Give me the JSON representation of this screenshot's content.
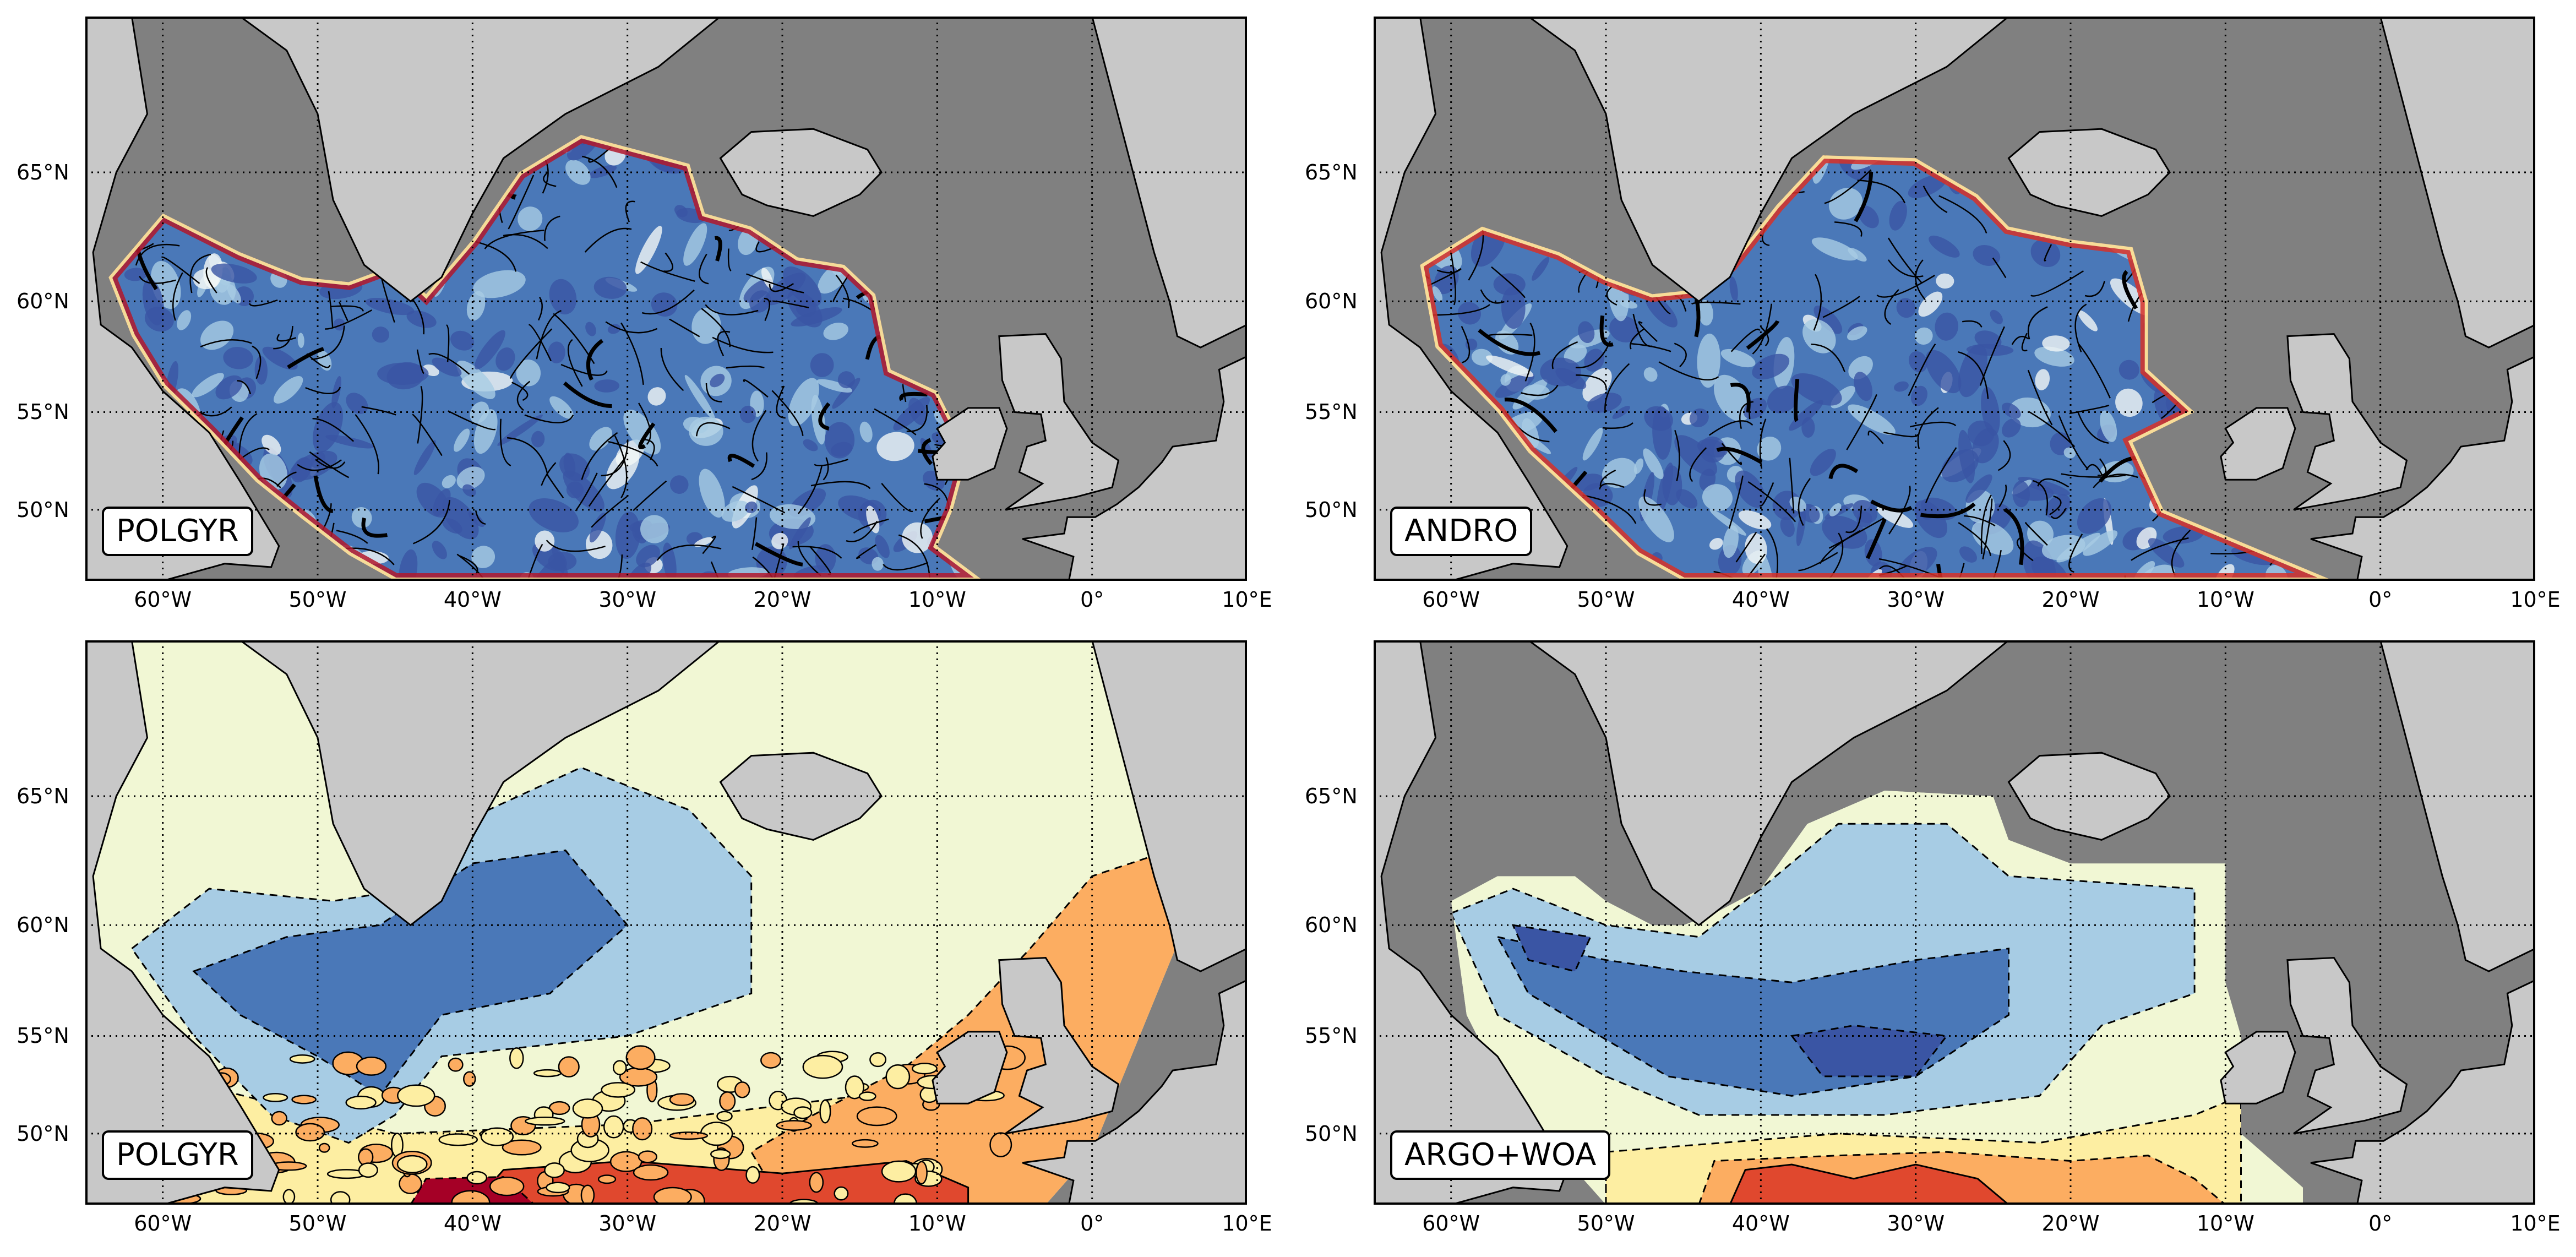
{
  "axes": {
    "lon_labels": [
      "60°W",
      "50°W",
      "40°W",
      "30°W",
      "20°W",
      "10°W",
      "0°",
      "10°E"
    ],
    "lon_values": [
      -60,
      -50,
      -40,
      -30,
      -20,
      -10,
      0,
      10
    ],
    "lat_labels_top": [
      "65°N",
      "60°N",
      "55°N",
      "50°N"
    ],
    "lat_values_top": [
      65,
      60,
      55,
      50
    ],
    "lat_labels_bottom": [
      "65°N",
      "60°N",
      "55°N",
      "50°N"
    ],
    "lat_values_bottom": [
      65,
      60,
      55,
      50
    ],
    "lon_range": [
      -65,
      10
    ],
    "lat_range_top": [
      46,
      70
    ],
    "lat_range_bottom": [
      46,
      70
    ]
  },
  "colors": {
    "ocean_mask": "#808080",
    "land": "#c8c8c8",
    "coast": "#000000",
    "blue_dark": "#3a55a4",
    "blue_mid": "#4a78b8",
    "blue_light": "#a7cce4",
    "pale": "#f1f7d4",
    "yellow": "#fdeea2",
    "orange": "#fcad61",
    "red": "#e0482e",
    "dark_red": "#a50026"
  },
  "panels": [
    {
      "id": "top-left",
      "label": "POLGYR",
      "type": "speed-streamlines"
    },
    {
      "id": "top-right",
      "label": "ANDRO",
      "type": "speed-streamlines"
    },
    {
      "id": "bottom-left",
      "label": "POLGYR",
      "type": "filled-contour"
    },
    {
      "id": "bottom-right",
      "label": "ARGO+WOA",
      "type": "filled-contour"
    }
  ]
}
